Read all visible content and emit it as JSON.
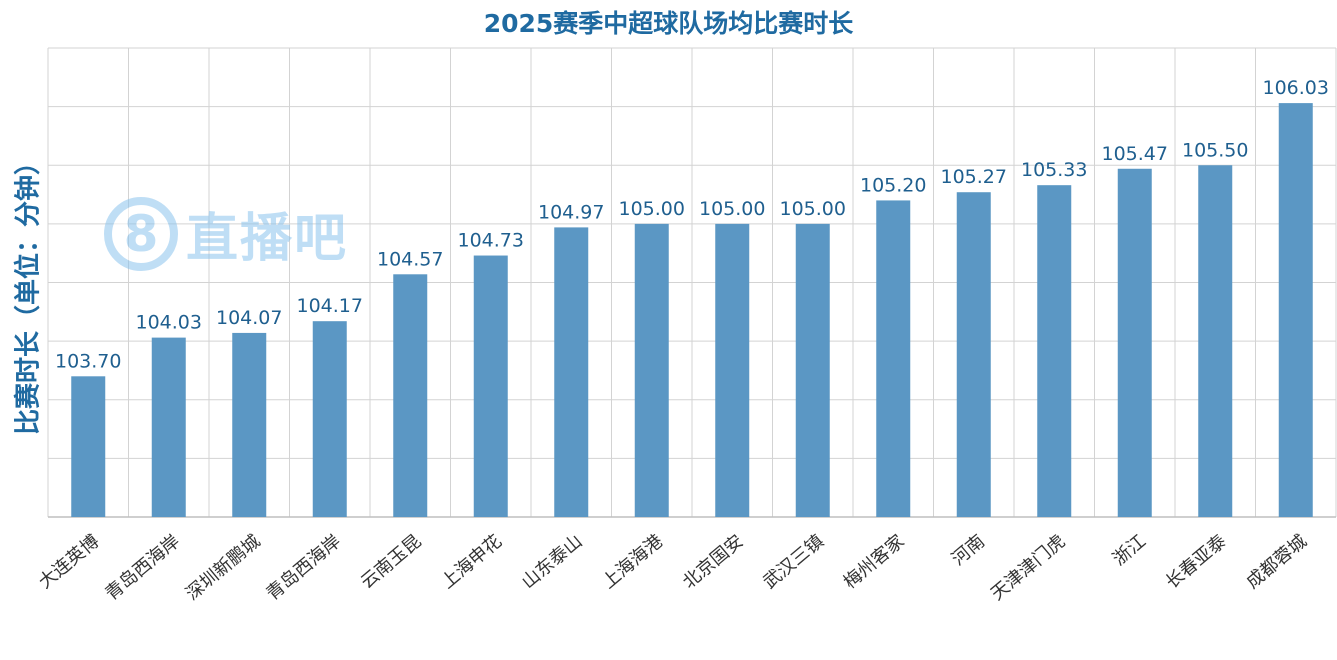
{
  "chart_data": {
    "type": "bar",
    "title": "2025赛季中超球队场均比赛时长",
    "xlabel": "",
    "ylabel": "比赛时长（单位：分钟）",
    "ylim": [
      102.5,
      106.5
    ],
    "grid": true,
    "categories": [
      "大连英博",
      "青岛西海岸",
      "深圳新鹏城",
      "青岛西海岸",
      "云南玉昆",
      "上海申花",
      "山东泰山",
      "上海海港",
      "北京国安",
      "武汉三镇",
      "梅州客家",
      "河南",
      "天津津门虎",
      "浙江",
      "长春亚泰",
      "成都蓉城"
    ],
    "values": [
      103.7,
      104.03,
      104.07,
      104.17,
      104.57,
      104.73,
      104.97,
      105.0,
      105.0,
      105.0,
      105.2,
      105.27,
      105.33,
      105.47,
      105.5,
      106.03
    ],
    "bar_color": "#5b97c4"
  },
  "watermark": {
    "badge": "8",
    "text": "直播吧"
  }
}
